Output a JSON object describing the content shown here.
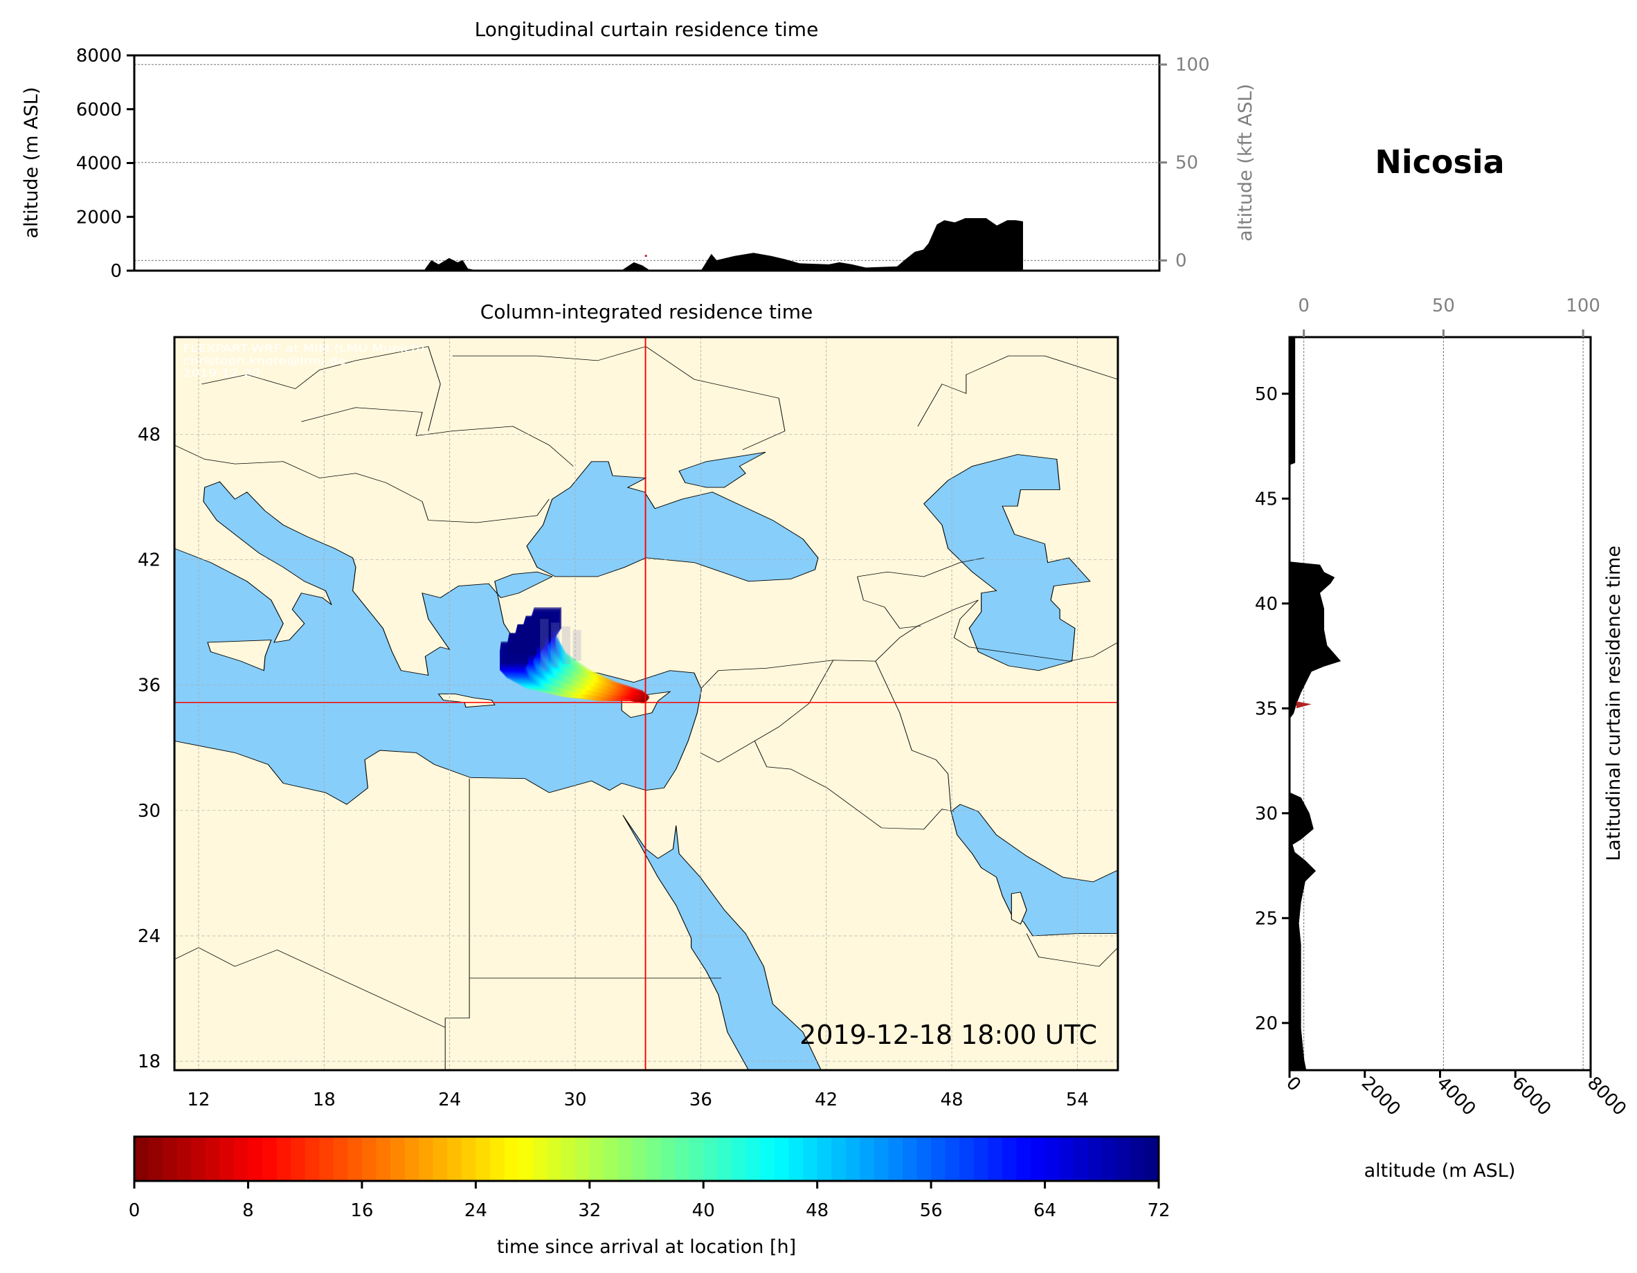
{
  "location": "Nicosia",
  "colors": {
    "sea": "#87cefa",
    "land": "#fff8dc",
    "receptor": "#ff0000",
    "terrain": "#000000",
    "kft_axis": "#808080"
  },
  "top_curtain": {
    "title": "Longitudinal curtain residence time",
    "ylabel": "altitude (m ASL)",
    "ylabel_right": "altitude (kft ASL)",
    "yticks": [
      "0",
      "2000",
      "4000",
      "6000",
      "8000"
    ],
    "right_ticks": [
      {
        "label": "0",
        "altitude_m": 380
      },
      {
        "label": "50",
        "altitude_m": 4020
      },
      {
        "label": "100",
        "altitude_m": 7660
      }
    ]
  },
  "map": {
    "title": "Column-integrated residence time",
    "xticks": [
      "12",
      "18",
      "24",
      "30",
      "36",
      "42",
      "48",
      "54"
    ],
    "yticks": [
      "18",
      "24",
      "30",
      "36",
      "42",
      "48"
    ],
    "attribution": [
      "FLEXPART-WRF at MIM (LMU Munich)",
      "christoph.knote@lmu.de",
      "2019-12-20"
    ],
    "timestamp": "2019-12-18 18:00 UTC",
    "receptor": {
      "lon": 33.36,
      "lat": 35.17
    }
  },
  "colorbar": {
    "label": "time since arrival at location [h]",
    "ticks": [
      "0",
      "8",
      "16",
      "24",
      "32",
      "40",
      "48",
      "56",
      "64",
      "72"
    ],
    "range": [
      0,
      72
    ],
    "colormap": "jet_r"
  },
  "right_curtain": {
    "ylabel": "Latitudinal curtain residence time",
    "xlabel": "altitude (m ASL)",
    "yticks": [
      "20",
      "25",
      "30",
      "35",
      "40",
      "45",
      "50"
    ],
    "xticks": [
      "0",
      "2000",
      "4000",
      "6000",
      "8000"
    ],
    "top_ticks": [
      {
        "label": "0",
        "altitude_m": 380
      },
      {
        "label": "50",
        "altitude_m": 4090
      },
      {
        "label": "100",
        "altitude_m": 7800
      }
    ]
  },
  "chart_data": [
    {
      "type": "area",
      "title": "Longitudinal curtain residence time",
      "xlabel": "",
      "ylabel": "altitude (m ASL)",
      "xlim": [
        10.85,
        55.95
      ],
      "ylim": [
        0,
        8000
      ],
      "grid": true,
      "series": [
        {
          "x": [
            23.59,
            23.92,
            24.24,
            24.7,
            25.07,
            25.3,
            25.53,
            25.99,
            32.27,
            32.83,
            33.2,
            33.56,
            35.78,
            36.24,
            36.47,
            37.26,
            38.09,
            38.87,
            39.47,
            40.12,
            41.41,
            41.87,
            42.42,
            43.03,
            44.41,
            44.73,
            45.19,
            45.56,
            45.79,
            46.16,
            46.49,
            46.95,
            47.41,
            48.33,
            48.8,
            49.26,
            49.63,
            49.95
          ],
          "y": [
            0,
            390,
            234,
            468,
            312,
            390,
            78,
            0,
            0,
            312,
            195,
            0,
            0,
            624,
            390,
            546,
            663,
            546,
            429,
            273,
            234,
            312,
            234,
            117,
            156,
            390,
            702,
            780,
            1014,
            1717,
            1873,
            1795,
            1951,
            1951,
            1678,
            1873,
            1873,
            1834
          ]
        }
      ],
      "receptor_marker": {
        "lon": 33.36,
        "altitude_m": 585
      }
    },
    {
      "type": "area",
      "title": "Latitudinal curtain residence time",
      "xlabel": "altitude (m ASL)",
      "ylabel": "",
      "xlim": [
        0,
        8000
      ],
      "ylim": [
        17.75,
        52.7
      ],
      "grid": true,
      "series": [
        {
          "lat": [
            52.7,
            46.7,
            46.6,
            42.0,
            41.85,
            41.5,
            41.25,
            40.95,
            40.5,
            39.75,
            38.75,
            38.0,
            37.25,
            37.0,
            36.75,
            35.75,
            35.25,
            34.75,
            34.5,
            31.0,
            30.75,
            30.0,
            29.25,
            28.75,
            28.5,
            28.15,
            27.75,
            27.25,
            26.75,
            25.75,
            24.75,
            23.75,
            21.75,
            19.75,
            18.25,
            17.75
          ],
          "altitude": [
            150,
            150,
            0,
            0,
            810,
            920,
            1200,
            1090,
            810,
            920,
            920,
            1000,
            1365,
            920,
            585,
            306,
            195,
            110,
            0,
            0,
            306,
            530,
            640,
            306,
            84,
            140,
            420,
            700,
            420,
            306,
            250,
            306,
            306,
            306,
            390,
            446
          ]
        }
      ],
      "receptor_marker": {
        "lat": 35.2,
        "altitude_m": 585
      }
    },
    {
      "type": "heatmap",
      "title": "Column-integrated residence time",
      "xlim": [
        10.85,
        55.95
      ],
      "ylim": [
        17.75,
        52.8
      ],
      "plume_path": {
        "lon": [
          33.36,
          32.9,
          31.5,
          30.0,
          28.6,
          27.9,
          27.7,
          27.9
        ],
        "lat": [
          35.3,
          35.5,
          35.7,
          36.1,
          36.7,
          37.4,
          37.9,
          38.4
        ],
        "hours": [
          0,
          6,
          18,
          30,
          44,
          56,
          64,
          72
        ]
      }
    }
  ]
}
